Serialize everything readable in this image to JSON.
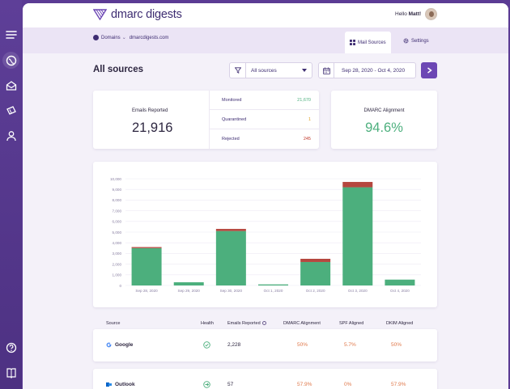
{
  "app": {
    "logo_text": "dmarc digests",
    "hello_prefix": "Hello",
    "user_name": "Matt!"
  },
  "breadcrumb": {
    "root": "Domains",
    "domain": "dmarcdigests.com"
  },
  "tabs": [
    {
      "label": "Mail Sources",
      "icon": "grid-icon",
      "active": true
    },
    {
      "label": "Settings",
      "icon": "gear-icon",
      "active": false
    }
  ],
  "page": {
    "title": "All sources"
  },
  "filters": {
    "source_value": "All sources",
    "date_range": "Sep 28, 2020 - Oct 4, 2020"
  },
  "summary": {
    "emails_reported_label": "Emails Reported",
    "emails_reported_value": "21,916",
    "rows": [
      {
        "label": "Monitored",
        "value": "21,670",
        "color": "#4caf7d"
      },
      {
        "label": "Quarantined",
        "value": "1",
        "color": "#e0a020"
      },
      {
        "label": "Rejected",
        "value": "245",
        "color": "#c0392b"
      }
    ],
    "alignment_label": "DMARC Alignment",
    "alignment_value": "94.6%"
  },
  "colors": {
    "accent": "#6c47b4",
    "green": "#4caf7d",
    "red": "#b5473f",
    "orange": "#e0784a",
    "brand": "#3e2d72"
  },
  "chart_data": {
    "type": "bar",
    "stacked": true,
    "categories": [
      "Sep 28, 2020",
      "Sep 29, 2020",
      "Sep 30, 2020",
      "Oct 1, 2020",
      "Oct 2, 2020",
      "Oct 3, 2020",
      "Oct 4, 2020"
    ],
    "y_ticks": [
      "0",
      "1,000",
      "2,000",
      "3,000",
      "4,000",
      "5,000",
      "6,000",
      "7,000",
      "8,000",
      "9,000",
      "10,000"
    ],
    "ylim": [
      0,
      10000
    ],
    "grid": true,
    "series": [
      {
        "color": "#4caf7d",
        "values": [
          3500,
          300,
          5100,
          100,
          2200,
          9200,
          550
        ]
      },
      {
        "color": "#b5473f",
        "values": [
          100,
          0,
          200,
          0,
          300,
          500,
          0
        ]
      }
    ]
  },
  "table": {
    "headers": [
      "Source",
      "Health",
      "Emails Reported",
      "DMARC Alignment",
      "SPF Aligned",
      "DKIM Aligned"
    ],
    "rows": [
      {
        "source": "Google",
        "icon": "google-icon",
        "health": "check-circle-icon",
        "emails": "2,228",
        "dmarc": "50%",
        "spf": "5.7%",
        "dkim": "50%"
      },
      {
        "source": "Outlook",
        "icon": "outlook-icon",
        "health": "arrow-circle-icon",
        "emails": "57",
        "dmarc": "57.9%",
        "spf": "0%",
        "dkim": "57.9%"
      }
    ]
  }
}
